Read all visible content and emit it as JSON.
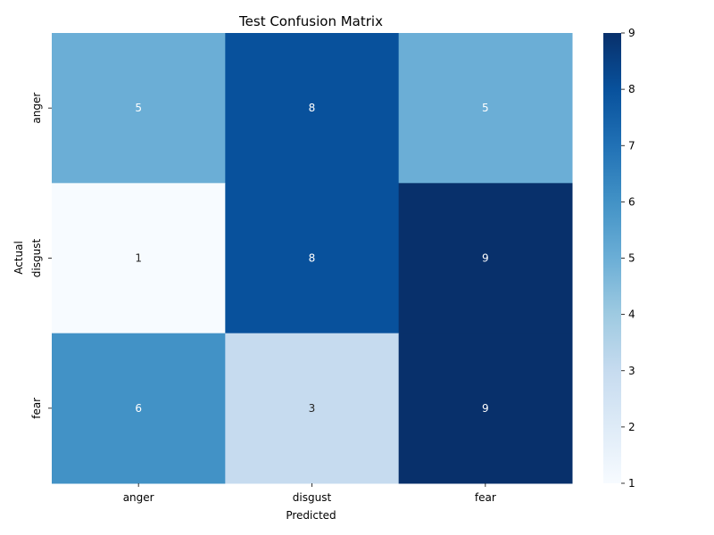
{
  "chart_data": {
    "type": "heatmap",
    "title": "Test Confusion Matrix",
    "xlabel": "Predicted",
    "ylabel": "Actual",
    "x_categories": [
      "anger",
      "disgust",
      "fear"
    ],
    "y_categories": [
      "anger",
      "disgust",
      "fear"
    ],
    "values": [
      [
        5,
        8,
        5
      ],
      [
        1,
        8,
        9
      ],
      [
        6,
        3,
        9
      ]
    ],
    "colorbar": {
      "min": 1,
      "max": 9,
      "ticks": [
        1,
        2,
        3,
        4,
        5,
        6,
        7,
        8,
        9
      ],
      "colormap": "Blues"
    },
    "colors": {
      "low": "#f7fbff",
      "high": "#08306b"
    }
  }
}
